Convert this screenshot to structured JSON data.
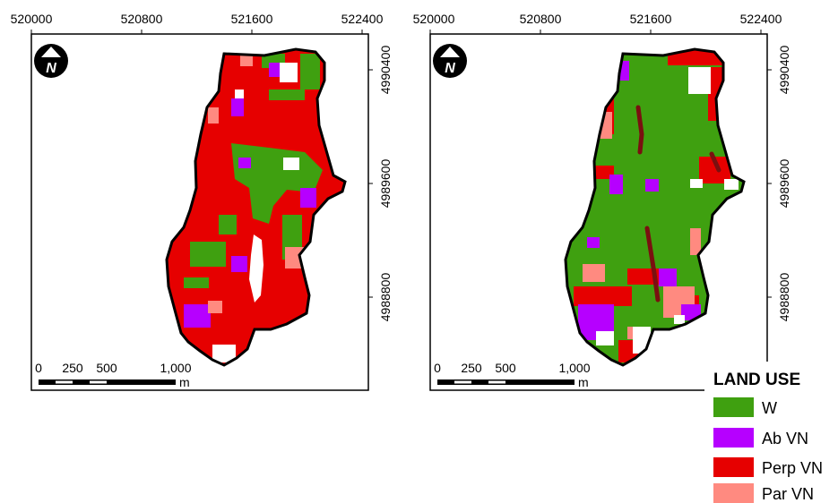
{
  "maps": [
    {
      "name": "map-left",
      "x_ticks": [
        "520000",
        "520800",
        "521600",
        "522400"
      ],
      "y_ticks": [
        "4990400",
        "4989600",
        "4988800"
      ],
      "north_label": "N",
      "scalebar": {
        "labels": [
          "0",
          "250",
          "500",
          "1,000"
        ],
        "unit": "m"
      }
    },
    {
      "name": "map-right",
      "x_ticks": [
        "520000",
        "520800",
        "521600",
        "522400"
      ],
      "y_ticks": [
        "4990400",
        "4989600",
        "4988800"
      ],
      "north_label": "N",
      "scalebar": {
        "labels": [
          "0",
          "250",
          "500",
          "1,000"
        ],
        "unit": "m"
      }
    }
  ],
  "legend": {
    "title": "LAND USE",
    "items": [
      {
        "label": "W",
        "color": "#3fa010"
      },
      {
        "label": "Ab VN",
        "color": "#b600ff"
      },
      {
        "label": "Perp VN",
        "color": "#e60000"
      },
      {
        "label": "Par VN",
        "color": "#ff8a80"
      }
    ]
  },
  "colors": {
    "water_course": "#7a1010",
    "outline": "#000000",
    "gap": "#ffffff"
  }
}
